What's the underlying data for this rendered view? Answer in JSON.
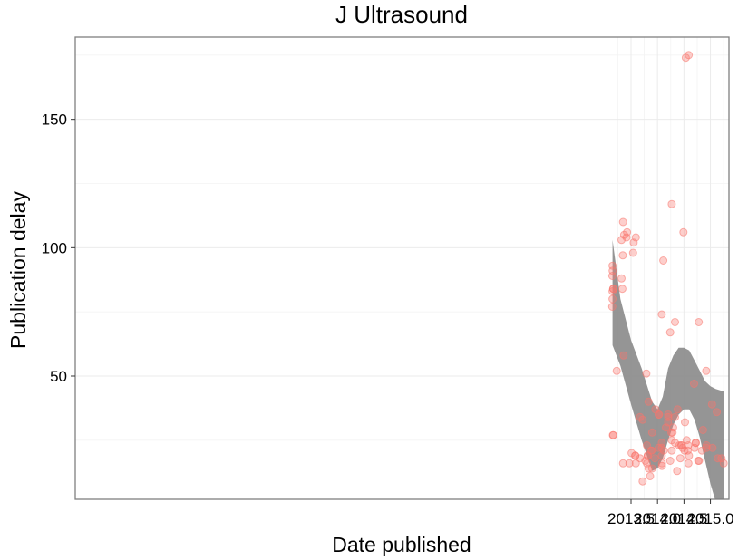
{
  "chart_data": {
    "type": "scatter",
    "title": "J Ultrasound",
    "xlabel": "Date published",
    "ylabel": "Publication delay",
    "xlim": [
      3.0,
      15.35
    ],
    "ylim": [
      2,
      182
    ],
    "x_tick_labels": [
      "2013.5",
      "2014.0",
      "2014.5",
      "2015.0"
    ],
    "x_tick_values": [
      13.5,
      14.0,
      14.5,
      15.0
    ],
    "y_ticks": [
      50,
      100,
      150
    ],
    "grid": true,
    "point_color": "#f8766d",
    "points": [
      [
        13.145,
        77
      ],
      [
        13.15,
        80
      ],
      [
        13.15,
        83
      ],
      [
        13.148,
        89
      ],
      [
        13.152,
        91
      ],
      [
        13.15,
        93
      ],
      [
        13.162,
        84
      ],
      [
        13.165,
        84
      ],
      [
        13.158,
        27
      ],
      [
        13.165,
        27
      ],
      [
        13.23,
        52
      ],
      [
        13.32,
        103
      ],
      [
        13.32,
        88
      ],
      [
        13.335,
        84
      ],
      [
        13.345,
        97
      ],
      [
        13.35,
        110
      ],
      [
        13.36,
        58
      ],
      [
        13.35,
        16
      ],
      [
        13.37,
        105
      ],
      [
        13.415,
        104
      ],
      [
        13.425,
        106
      ],
      [
        13.47,
        16
      ],
      [
        13.51,
        20
      ],
      [
        13.54,
        98
      ],
      [
        13.55,
        102
      ],
      [
        13.58,
        19
      ],
      [
        13.58,
        19
      ],
      [
        13.59,
        16
      ],
      [
        13.59,
        104
      ],
      [
        13.67,
        34
      ],
      [
        13.67,
        18
      ],
      [
        13.72,
        33
      ],
      [
        13.72,
        9
      ],
      [
        13.77,
        17
      ],
      [
        13.79,
        51
      ],
      [
        13.8,
        16
      ],
      [
        13.8,
        23
      ],
      [
        13.815,
        19
      ],
      [
        13.815,
        19
      ],
      [
        13.83,
        14
      ],
      [
        13.83,
        40
      ],
      [
        13.86,
        11
      ],
      [
        13.88,
        21
      ],
      [
        13.89,
        21
      ],
      [
        13.9,
        28
      ],
      [
        13.9,
        14
      ],
      [
        13.95,
        18
      ],
      [
        13.96,
        37
      ],
      [
        14.02,
        35
      ],
      [
        14.02,
        22
      ],
      [
        14.03,
        35
      ],
      [
        14.08,
        74
      ],
      [
        14.08,
        24
      ],
      [
        14.08,
        22
      ],
      [
        14.08,
        19
      ],
      [
        14.085,
        15
      ],
      [
        14.085,
        16
      ],
      [
        14.11,
        95
      ],
      [
        14.12,
        21
      ],
      [
        14.16,
        30
      ],
      [
        14.2,
        32
      ],
      [
        14.2,
        34
      ],
      [
        14.2,
        35
      ],
      [
        14.24,
        67
      ],
      [
        14.24,
        17
      ],
      [
        14.26,
        28
      ],
      [
        14.27,
        117
      ],
      [
        14.27,
        21
      ],
      [
        14.27,
        25
      ],
      [
        14.285,
        28
      ],
      [
        14.295,
        30
      ],
      [
        14.33,
        71
      ],
      [
        14.33,
        24
      ],
      [
        14.33,
        34
      ],
      [
        14.37,
        13
      ],
      [
        14.38,
        37
      ],
      [
        14.41,
        23
      ],
      [
        14.43,
        18
      ],
      [
        14.445,
        23
      ],
      [
        14.46,
        23
      ],
      [
        14.475,
        22
      ],
      [
        14.49,
        106
      ],
      [
        14.51,
        21
      ],
      [
        14.52,
        32
      ],
      [
        14.535,
        174
      ],
      [
        14.55,
        25
      ],
      [
        14.57,
        21
      ],
      [
        14.58,
        23
      ],
      [
        14.585,
        16
      ],
      [
        14.595,
        19
      ],
      [
        14.59,
        175
      ],
      [
        14.69,
        47
      ],
      [
        14.7,
        22
      ],
      [
        14.72,
        24
      ],
      [
        14.725,
        24
      ],
      [
        14.77,
        17
      ],
      [
        14.78,
        71
      ],
      [
        14.785,
        17
      ],
      [
        14.84,
        21
      ],
      [
        14.86,
        29
      ],
      [
        14.92,
        52
      ],
      [
        14.925,
        23
      ],
      [
        14.925,
        22
      ],
      [
        15.03,
        39
      ],
      [
        15.04,
        22
      ],
      [
        15.12,
        36
      ],
      [
        15.14,
        18
      ],
      [
        15.21,
        18
      ],
      [
        15.25,
        16
      ]
    ],
    "smooth": {
      "x": [
        13.15,
        13.3,
        13.5,
        13.7,
        13.9,
        14.0,
        14.1,
        14.2,
        14.3,
        14.4,
        14.5,
        14.6,
        14.7,
        14.8,
        14.9,
        15.0,
        15.1,
        15.25
      ],
      "upper": [
        103,
        80,
        64,
        53,
        40,
        37,
        42,
        53,
        58,
        61,
        61,
        60,
        56,
        52,
        48,
        46,
        45,
        44
      ],
      "lower": [
        62,
        54,
        39,
        25,
        13,
        14,
        18,
        25,
        31,
        35,
        37,
        37,
        33,
        26,
        17,
        8,
        1,
        -12
      ]
    }
  }
}
